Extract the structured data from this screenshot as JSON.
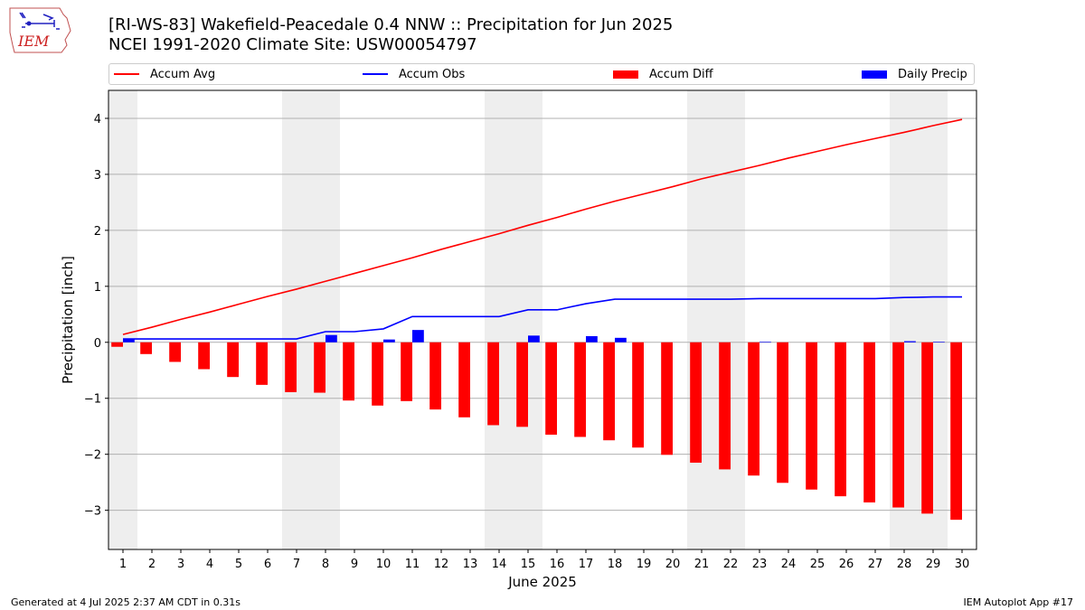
{
  "header": {
    "logo_text": "IEM",
    "title_line1": "[RI-WS-83] Wakefield-Peacedale 0.4 NNW :: Precipitation for Jun 2025",
    "title_line2": "NCEI 1991-2020 Climate Site: USW00054797"
  },
  "legend": {
    "items": [
      {
        "label": "Accum Avg",
        "kind": "line",
        "color": "#ff0000"
      },
      {
        "label": "Accum Obs",
        "kind": "line",
        "color": "#0000ff"
      },
      {
        "label": "Accum Diff",
        "kind": "patch",
        "color": "#ff0000"
      },
      {
        "label": "Daily Precip",
        "kind": "patch",
        "color": "#0000ff"
      }
    ]
  },
  "footer": {
    "left": "Generated at 4 Jul 2025 2:37 AM CDT in 0.31s",
    "right": "IEM Autoplot App #17"
  },
  "chart_data": {
    "type": "bar",
    "xlabel": "June 2025",
    "ylabel": "Precipitation [inch]",
    "x": [
      1,
      2,
      3,
      4,
      5,
      6,
      7,
      8,
      9,
      10,
      11,
      12,
      13,
      14,
      15,
      16,
      17,
      18,
      19,
      20,
      21,
      22,
      23,
      24,
      25,
      26,
      27,
      28,
      29,
      30
    ],
    "xlim": [
      0.5,
      30.5
    ],
    "ylim": [
      -3.7,
      4.5
    ],
    "yticks": [
      4,
      3,
      2,
      1,
      0,
      -1,
      -2,
      -3
    ],
    "ytick_labels": [
      "4",
      "3",
      "2",
      "1",
      "0",
      "−1",
      "−2",
      "−3"
    ],
    "grid": "y",
    "legend_position": "top",
    "weekend_shading": [
      [
        0.5,
        1.5
      ],
      [
        6.5,
        8.5
      ],
      [
        13.5,
        15.5
      ],
      [
        20.5,
        22.5
      ],
      [
        27.5,
        29.5
      ]
    ],
    "series": [
      {
        "name": "Accum Avg",
        "type": "line",
        "color": "#ff0000",
        "values": [
          0.14,
          0.27,
          0.41,
          0.54,
          0.68,
          0.82,
          0.95,
          1.09,
          1.23,
          1.37,
          1.51,
          1.66,
          1.8,
          1.94,
          2.09,
          2.23,
          2.38,
          2.52,
          2.65,
          2.78,
          2.92,
          3.04,
          3.16,
          3.29,
          3.41,
          3.53,
          3.64,
          3.75,
          3.87,
          3.98
        ]
      },
      {
        "name": "Accum Obs",
        "type": "line",
        "color": "#0000ff",
        "values": [
          0.06,
          0.06,
          0.06,
          0.06,
          0.06,
          0.06,
          0.06,
          0.19,
          0.19,
          0.24,
          0.46,
          0.46,
          0.46,
          0.46,
          0.58,
          0.58,
          0.69,
          0.77,
          0.77,
          0.77,
          0.77,
          0.77,
          0.78,
          0.78,
          0.78,
          0.78,
          0.78,
          0.8,
          0.81,
          0.81
        ]
      },
      {
        "name": "Accum Diff",
        "type": "bar",
        "color": "#ff0000",
        "values": [
          -0.08,
          -0.21,
          -0.35,
          -0.48,
          -0.62,
          -0.76,
          -0.89,
          -0.9,
          -1.04,
          -1.13,
          -1.05,
          -1.2,
          -1.34,
          -1.48,
          -1.51,
          -1.65,
          -1.69,
          -1.75,
          -1.88,
          -2.01,
          -2.15,
          -2.27,
          -2.38,
          -2.51,
          -2.63,
          -2.75,
          -2.86,
          -2.95,
          -3.06,
          -3.17
        ]
      },
      {
        "name": "Daily Precip",
        "type": "bar",
        "color": "#0000ff",
        "values": [
          0.06,
          0,
          0,
          0,
          0,
          0,
          0,
          0.13,
          0,
          0.05,
          0.22,
          0,
          0,
          0,
          0.12,
          0,
          0.11,
          0.08,
          0,
          0,
          0,
          0,
          0.01,
          0,
          0,
          0,
          0,
          0.02,
          0.01,
          0
        ]
      }
    ]
  }
}
